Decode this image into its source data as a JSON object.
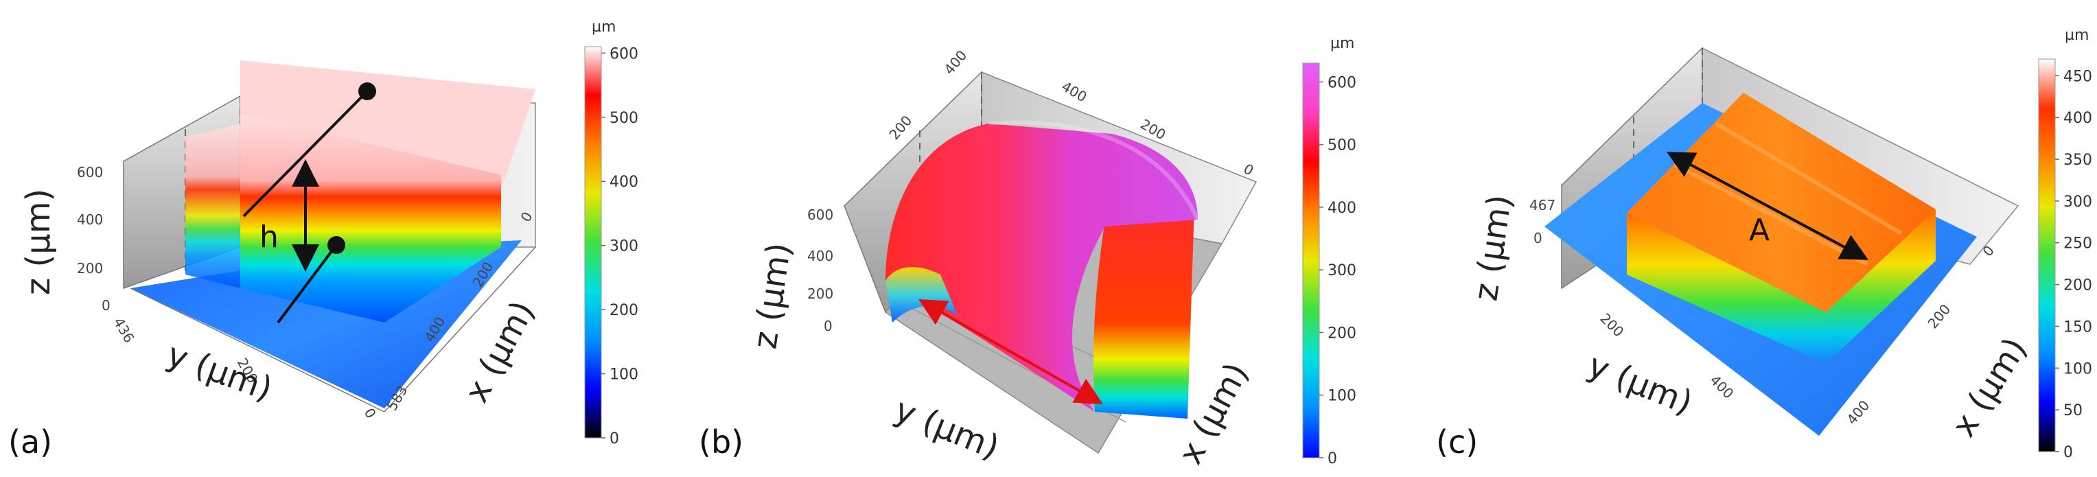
{
  "panels": [
    {
      "id": "a",
      "label": "(a)",
      "colorbar": {
        "unit": "µm",
        "ticks": [
          "0",
          "100",
          "200",
          "300",
          "400",
          "500",
          "600"
        ],
        "stops": [
          "#000000",
          "#0000ff",
          "#0090ff",
          "#00e0e0",
          "#40e040",
          "#e8e800",
          "#ff8000",
          "#ff0000",
          "#ffffff"
        ]
      },
      "axes": {
        "z_label": "z (µm)",
        "z_ticks": [
          "0",
          "200",
          "400",
          "600"
        ],
        "y_label": "y (µm)",
        "y_ticks": [
          "436",
          "200",
          "0"
        ],
        "x_label": "x (µm)",
        "x_ticks": [
          "0",
          "200",
          "400",
          "583"
        ]
      },
      "annotation": "h"
    },
    {
      "id": "b",
      "label": "(b)",
      "colorbar": {
        "unit": "µm",
        "ticks": [
          "0",
          "100",
          "200",
          "300",
          "400",
          "500",
          "600"
        ],
        "stops": [
          "#0000ff",
          "#0090ff",
          "#00e0e0",
          "#40e040",
          "#e8e800",
          "#ff8000",
          "#ff0000",
          "#ff40c0",
          "#e060ff"
        ]
      },
      "axes": {
        "z_label": "z (µm)",
        "z_ticks": [
          "0",
          "200",
          "400",
          "600"
        ],
        "y_label": "y (µm)",
        "y_ticks": [
          "400",
          "200"
        ],
        "x_label": "x (µm)",
        "x_ticks": [
          "400",
          "200",
          "0"
        ]
      }
    },
    {
      "id": "c",
      "label": "(c)",
      "colorbar": {
        "unit": "µm",
        "ticks": [
          "0",
          "50",
          "100",
          "150",
          "200",
          "250",
          "300",
          "350",
          "400",
          "450"
        ],
        "stops": [
          "#000000",
          "#0000ff",
          "#0090ff",
          "#00e0e0",
          "#40e040",
          "#e8e800",
          "#ff8000",
          "#ff3000",
          "#ffffff"
        ]
      },
      "axes": {
        "z_label": "z (µm)",
        "z_ticks": [
          "0",
          "467"
        ],
        "y_label": "y (µm)",
        "y_ticks": [
          "200",
          "400"
        ],
        "x_label": "x (µm)",
        "x_ticks": [
          "0",
          "200",
          "400"
        ]
      },
      "annotation": "A"
    }
  ]
}
